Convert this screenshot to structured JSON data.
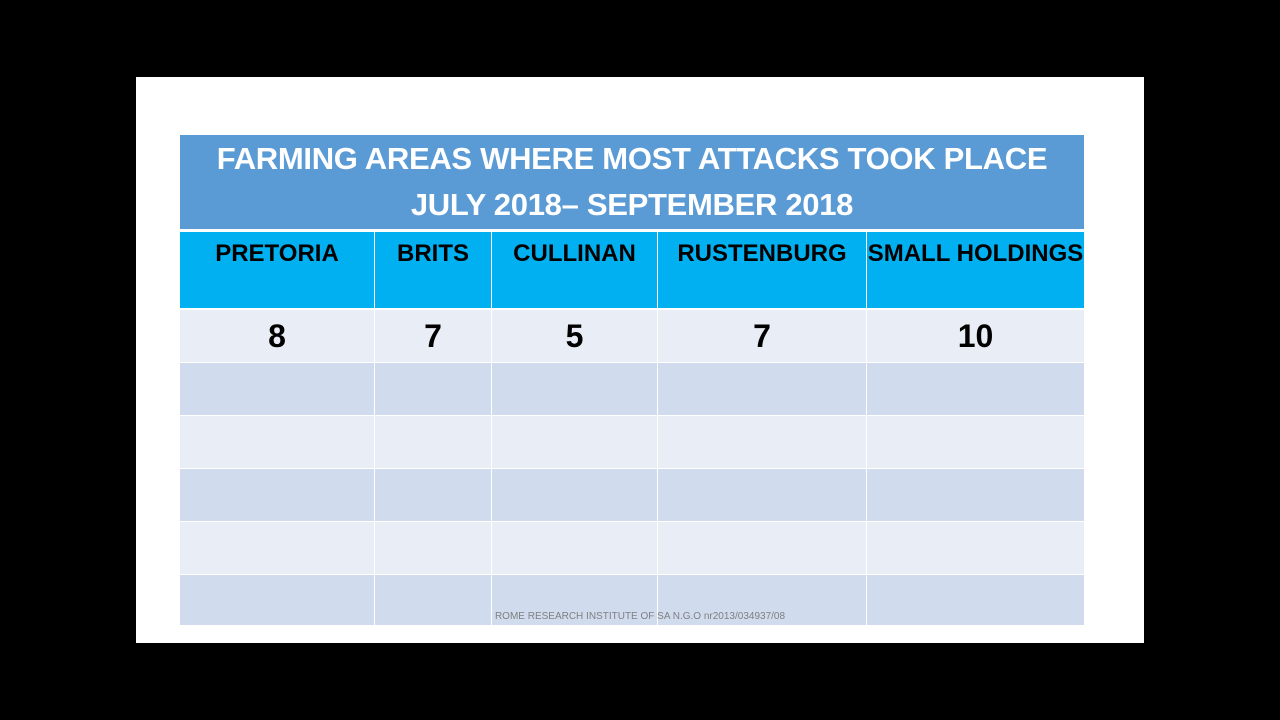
{
  "title": {
    "line1": "FARMING AREAS WHERE MOST ATTACKS TOOK PLACE",
    "line2": "JULY 2018– SEPTEMBER 2018"
  },
  "table": {
    "headers": [
      "PRETORIA",
      "BRITS",
      "CULLINAN",
      "RUSTENBURG",
      "SMALL HOLDINGS"
    ],
    "values": [
      "8",
      "7",
      "5",
      "7",
      "10"
    ]
  },
  "footer": "ROME RESEARCH INSTITUTE OF SA N.G.O nr2013/034937/08",
  "colors": {
    "title_bg": "#5b9bd5",
    "header_bg": "#00b0f0",
    "row_light": "#e9eef6",
    "row_dark": "#d0dcee"
  }
}
